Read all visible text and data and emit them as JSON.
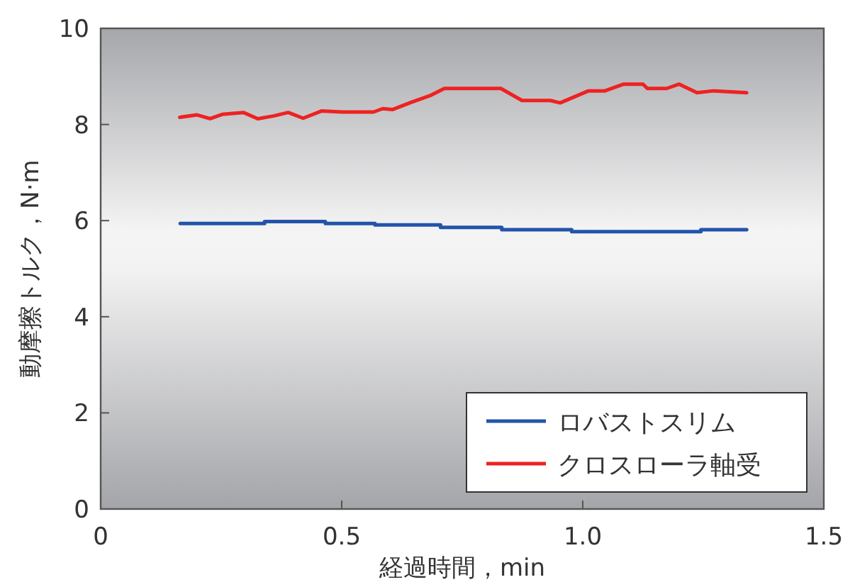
{
  "chart_data": {
    "type": "line",
    "xlabel": "経過時間，min",
    "ylabel": "動摩擦トルク，N·m",
    "xlim": [
      0,
      1.5
    ],
    "xticks": [
      0,
      {
        "value": 0.5,
        "label": "0.5"
      },
      {
        "value": 1,
        "label": "1.0"
      },
      1.5
    ],
    "ylim": [
      0,
      10
    ],
    "yticks": [
      0,
      2,
      4,
      6,
      8,
      10
    ],
    "grid": false,
    "legend": "bottom right",
    "marker": "none",
    "line_style": "solid",
    "series": [
      {
        "name": "ロバストスリム",
        "type": "step",
        "color": "#2255aa",
        "x": [
          0.165,
          0.34,
          0.466,
          0.569,
          0.705,
          0.832,
          0.977,
          1.245,
          1.34
        ],
        "values": [
          5.94,
          5.98,
          5.94,
          5.91,
          5.86,
          5.81,
          5.77,
          5.81,
          5.81
        ]
      },
      {
        "name": "クロスローラ軸受",
        "color": "#ee2222",
        "x": [
          0.164,
          0.2,
          0.227,
          0.252,
          0.296,
          0.326,
          0.36,
          0.389,
          0.42,
          0.458,
          0.502,
          0.566,
          0.585,
          0.605,
          0.644,
          0.683,
          0.713,
          0.732,
          0.83,
          0.874,
          0.933,
          0.953,
          1.012,
          1.046,
          1.085,
          1.125,
          1.134,
          1.174,
          1.2,
          1.237,
          1.271,
          1.34
        ],
        "values": [
          8.15,
          8.2,
          8.12,
          8.21,
          8.25,
          8.12,
          8.18,
          8.25,
          8.13,
          8.28,
          8.26,
          8.26,
          8.33,
          8.31,
          8.46,
          8.6,
          8.75,
          8.75,
          8.75,
          8.5,
          8.5,
          8.45,
          8.7,
          8.7,
          8.84,
          8.84,
          8.75,
          8.75,
          8.84,
          8.66,
          8.7,
          8.66
        ]
      }
    ]
  }
}
